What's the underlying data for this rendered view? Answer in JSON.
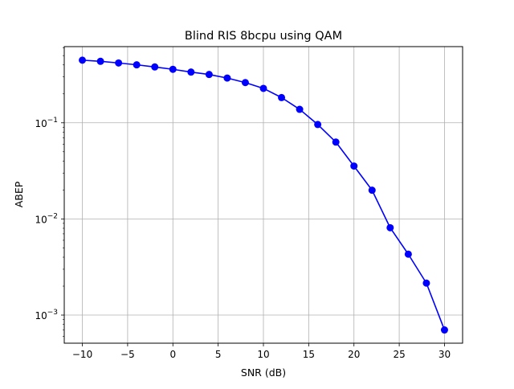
{
  "chart_data": {
    "type": "line",
    "title": "Blind RIS 8bcpu using QAM",
    "xlabel": "SNR (dB)",
    "ylabel": "ABEP",
    "xscale": "linear",
    "yscale": "log",
    "xlim": [
      -12,
      32
    ],
    "ylim": [
      0.00051,
      0.62
    ],
    "grid": true,
    "x_ticks": [
      -10,
      -5,
      0,
      5,
      10,
      15,
      20,
      25,
      30
    ],
    "x_tick_labels": [
      "−10",
      "−5",
      "0",
      "5",
      "10",
      "15",
      "20",
      "25",
      "30"
    ],
    "y_ticks": [
      0.1,
      0.01,
      0.001
    ],
    "y_tick_labels": [
      {
        "base": "10",
        "exp": "−1"
      },
      {
        "base": "10",
        "exp": "−2"
      },
      {
        "base": "10",
        "exp": "−3"
      }
    ],
    "series": [
      {
        "color": "#0000ff",
        "marker": "circle",
        "x": [
          -10,
          -8,
          -6,
          -4,
          -2,
          0,
          2,
          4,
          6,
          8,
          10,
          12,
          14,
          16,
          18,
          20,
          22,
          24,
          26,
          28,
          30
        ],
        "values": [
          0.448,
          0.436,
          0.419,
          0.401,
          0.381,
          0.36,
          0.337,
          0.318,
          0.292,
          0.262,
          0.228,
          0.183,
          0.138,
          0.096,
          0.063,
          0.0355,
          0.0199,
          0.0081,
          0.0043,
          0.00215,
          0.0007
        ]
      }
    ]
  }
}
